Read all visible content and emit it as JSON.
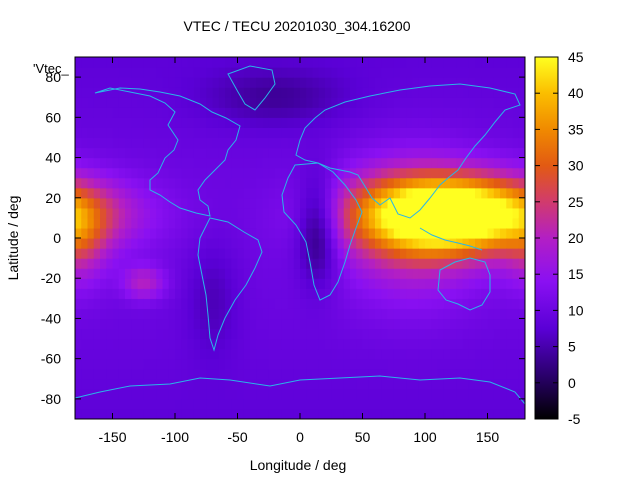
{
  "chart_data": {
    "type": "heatmap",
    "title": "VTEC / TECU 20201030_304.16200",
    "xlabel": "Longitude / deg",
    "ylabel": "Latitude / deg",
    "legend_key": "'Vtec_",
    "xlim": [
      -180,
      180
    ],
    "ylim": [
      -90,
      90
    ],
    "x_ticks": [
      -150,
      -100,
      -50,
      0,
      50,
      100,
      150
    ],
    "y_ticks": [
      -80,
      -60,
      -40,
      -20,
      0,
      20,
      40,
      60,
      80
    ],
    "colorbar": {
      "range": [
        -5,
        45
      ],
      "ticks": [
        -5,
        0,
        5,
        10,
        15,
        20,
        25,
        30,
        35,
        40,
        45
      ]
    },
    "grid": false,
    "features": [
      {
        "lon": 125,
        "lat": 12,
        "peak": 44,
        "sx": 55,
        "sy": 13
      },
      {
        "lon": 90,
        "lat": 5,
        "peak": 12,
        "sx": 40,
        "sy": 25
      },
      {
        "lon": 15,
        "lat": 5,
        "peak": -12,
        "sx": 12,
        "sy": 18
      },
      {
        "lon": -125,
        "lat": -22,
        "peak": 10,
        "sx": 12,
        "sy": 6
      },
      {
        "lon": -175,
        "lat": -5,
        "peak": 8,
        "sx": 15,
        "sy": 15
      },
      {
        "lon": -70,
        "lat": -30,
        "peak": -4,
        "sx": 15,
        "sy": 20
      },
      {
        "lon": -20,
        "lat": 70,
        "peak": -5,
        "sx": 40,
        "sy": 10
      }
    ]
  }
}
